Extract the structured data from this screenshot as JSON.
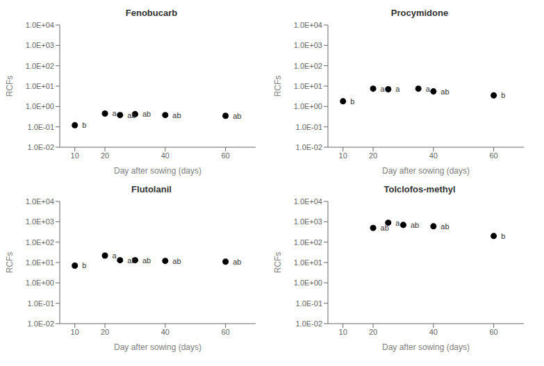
{
  "chart_data": [
    {
      "type": "scatter",
      "title": "Fenobucarb",
      "x": [
        10,
        20,
        25,
        30,
        40,
        60
      ],
      "values": [
        0.12,
        0.45,
        0.38,
        0.42,
        0.38,
        0.35
      ],
      "annotations": [
        "b",
        "a",
        "ab",
        "ab",
        "ab",
        "ab"
      ],
      "xlabel": "Day after sowing (days)",
      "ylabel": "RCFs",
      "xlim": [
        5,
        70
      ],
      "xticks": [
        10,
        20,
        40,
        60
      ],
      "ylim": [
        0.01,
        10000
      ],
      "yticks": [
        {
          "value": 0.01,
          "label": "1.0E-02"
        },
        {
          "value": 0.1,
          "label": "1.0E-01"
        },
        {
          "value": 1,
          "label": "1.0E+00"
        },
        {
          "value": 10,
          "label": "1.0E+01"
        },
        {
          "value": 100,
          "label": "1.0E+02"
        },
        {
          "value": 1000,
          "label": "1.0E+03"
        },
        {
          "value": 10000,
          "label": "1.0E+04"
        }
      ],
      "log": "y",
      "grid": false
    },
    {
      "type": "scatter",
      "title": "Procymidone",
      "x": [
        10,
        20,
        25,
        35,
        40,
        60
      ],
      "values": [
        1.8,
        7.5,
        7.0,
        7.5,
        5.5,
        3.5
      ],
      "annotations": [
        "b",
        "a",
        "a",
        "a",
        "ab",
        "b"
      ],
      "xlabel": "Day after sowing (days)",
      "ylabel": "RCFs",
      "xlim": [
        5,
        70
      ],
      "xticks": [
        10,
        20,
        40,
        60
      ],
      "ylim": [
        0.01,
        10000
      ],
      "yticks": [
        {
          "value": 0.01,
          "label": "1.0E-02"
        },
        {
          "value": 0.1,
          "label": "1.0E-01"
        },
        {
          "value": 1,
          "label": "1.0E+00"
        },
        {
          "value": 10,
          "label": "1.0E+01"
        },
        {
          "value": 100,
          "label": "1.0E+02"
        },
        {
          "value": 1000,
          "label": "1.0E+03"
        },
        {
          "value": 10000,
          "label": "1.0E+04"
        }
      ],
      "log": "y",
      "grid": false
    },
    {
      "type": "scatter",
      "title": "Flutolanil",
      "x": [
        10,
        20,
        25,
        30,
        40,
        60
      ],
      "values": [
        7.0,
        22.0,
        13.0,
        13.0,
        12.0,
        11.0
      ],
      "annotations": [
        "b",
        "a",
        "ab",
        "ab",
        "ab",
        "ab"
      ],
      "xlabel": "Day after sowing (days)",
      "ylabel": "RCFs",
      "xlim": [
        5,
        70
      ],
      "xticks": [
        10,
        20,
        40,
        60
      ],
      "ylim": [
        0.01,
        10000
      ],
      "yticks": [
        {
          "value": 0.01,
          "label": "1.0E-02"
        },
        {
          "value": 0.1,
          "label": "1.0E-01"
        },
        {
          "value": 1,
          "label": "1.0E+00"
        },
        {
          "value": 10,
          "label": "1.0E+01"
        },
        {
          "value": 100,
          "label": "1.0E+02"
        },
        {
          "value": 1000,
          "label": "1.0E+03"
        },
        {
          "value": 10000,
          "label": "1.0E+04"
        }
      ],
      "log": "y",
      "grid": false
    },
    {
      "type": "scatter",
      "title": "Tolclofos-methyl",
      "x": [
        20,
        25,
        30,
        40,
        60
      ],
      "values": [
        500.0,
        900.0,
        700.0,
        600.0,
        200.0
      ],
      "annotations": [
        "ab",
        "a",
        "ab",
        "ab",
        "b"
      ],
      "xlabel": "Day after sowing (days)",
      "ylabel": "RCFs",
      "xlim": [
        5,
        70
      ],
      "xticks": [
        10,
        20,
        40,
        60
      ],
      "ylim": [
        0.01,
        10000
      ],
      "yticks": [
        {
          "value": 0.01,
          "label": "1.0E-02"
        },
        {
          "value": 0.1,
          "label": "1.0E-01"
        },
        {
          "value": 1,
          "label": "1.0E+00"
        },
        {
          "value": 10,
          "label": "1.0E+01"
        },
        {
          "value": 100,
          "label": "1.0E+02"
        },
        {
          "value": 1000,
          "label": "1.0E+03"
        },
        {
          "value": 10000,
          "label": "1.0E+04"
        }
      ],
      "log": "y",
      "grid": false
    }
  ]
}
